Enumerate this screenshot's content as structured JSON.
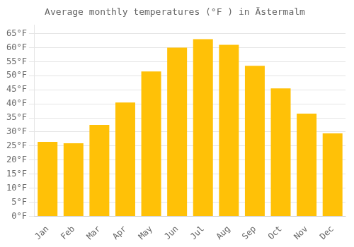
{
  "chart_data": {
    "type": "bar",
    "title": "Average monthly temperatures (°F ) in Ästermalm",
    "categories": [
      "Jan",
      "Feb",
      "Mar",
      "Apr",
      "May",
      "Jun",
      "Jul",
      "Aug",
      "Sep",
      "Oct",
      "Nov",
      "Dec"
    ],
    "values": [
      26.5,
      26.0,
      32.5,
      40.5,
      51.5,
      60.0,
      63.0,
      61.0,
      53.5,
      45.5,
      36.5,
      29.5
    ],
    "color": "#FFC107",
    "ylim": [
      0,
      68
    ],
    "yticks": [
      {
        "value": 0,
        "label": "0°F"
      },
      {
        "value": 5,
        "label": "5°F"
      },
      {
        "value": 10,
        "label": "10°F"
      },
      {
        "value": 15,
        "label": "15°F"
      },
      {
        "value": 20,
        "label": "20°F"
      },
      {
        "value": 25,
        "label": "25°F"
      },
      {
        "value": 30,
        "label": "30°F"
      },
      {
        "value": 35,
        "label": "35°F"
      },
      {
        "value": 40,
        "label": "40°F"
      },
      {
        "value": 45,
        "label": "45°F"
      },
      {
        "value": 50,
        "label": "50°F"
      },
      {
        "value": 55,
        "label": "55°F"
      },
      {
        "value": 60,
        "label": "60°F"
      },
      {
        "value": 65,
        "label": "65°F"
      }
    ],
    "grid": true
  }
}
